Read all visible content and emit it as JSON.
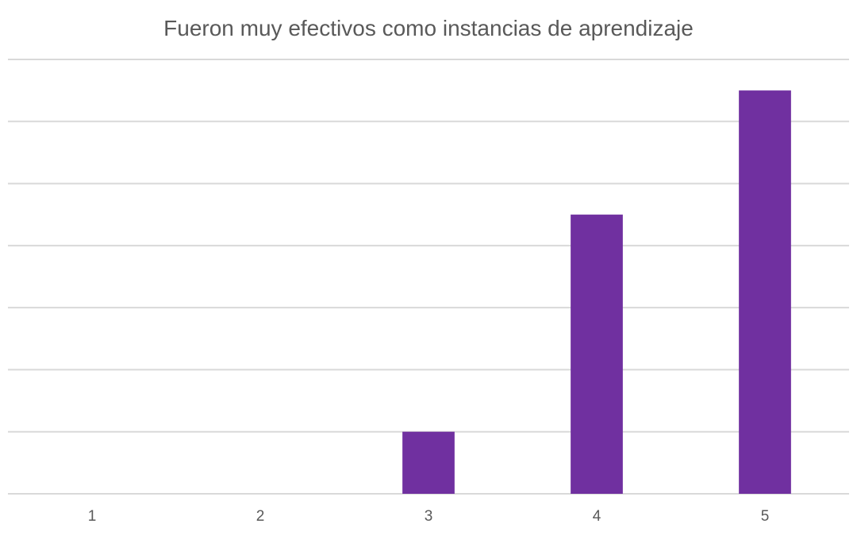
{
  "chart_data": {
    "type": "bar",
    "title": "Fueron muy efectivos como instancias de aprendizaje",
    "xlabel": "",
    "ylabel": "",
    "categories": [
      "1",
      "2",
      "3",
      "4",
      "5"
    ],
    "values": [
      0,
      0,
      1,
      4.5,
      6.5
    ],
    "ylim": [
      0,
      7
    ],
    "yticks": [
      0,
      1,
      2,
      3,
      4,
      5,
      6,
      7
    ],
    "grid": true,
    "legend": "none",
    "bar_color": "#7030a0",
    "grid_color": "#d9d9d9",
    "text_color": "#595959"
  }
}
